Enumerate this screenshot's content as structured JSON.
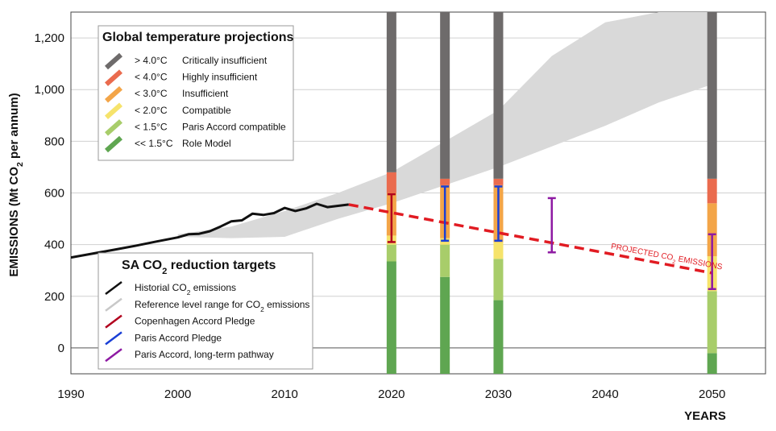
{
  "chart_data": {
    "type": "bar",
    "xlabel": "YEARS",
    "ylabel": "EMISSIONS (Mt CO2 per annum)",
    "ylabel_parts": {
      "pre": "EMISSIONS (Mt CO",
      "sub": "2",
      "post": " per annum)"
    },
    "xlim": [
      1990,
      2055
    ],
    "ylim": [
      -100,
      1300
    ],
    "x_ticks": [
      {
        "value": 1990,
        "label": "1990"
      },
      {
        "value": 2000,
        "label": "2000"
      },
      {
        "value": 2010,
        "label": "2010"
      },
      {
        "value": 2020,
        "label": "2020"
      },
      {
        "value": 2030,
        "label": "2030"
      },
      {
        "value": 2040,
        "label": "2040"
      },
      {
        "value": 2050,
        "label": "2050"
      }
    ],
    "y_ticks": [
      {
        "value": 0,
        "label": "0"
      },
      {
        "value": 200,
        "label": "200"
      },
      {
        "value": 400,
        "label": "400"
      },
      {
        "value": 600,
        "label": "600"
      },
      {
        "value": 800,
        "label": "800"
      },
      {
        "value": 1000,
        "label": "1,000"
      },
      {
        "value": 1200,
        "label": "1,200"
      }
    ],
    "grid": true,
    "historical_emissions": {
      "color": "#111111",
      "points": [
        [
          1990,
          350
        ],
        [
          1992,
          365
        ],
        [
          1994,
          380
        ],
        [
          1996,
          395
        ],
        [
          1998,
          412
        ],
        [
          2000,
          428
        ],
        [
          2001,
          440
        ],
        [
          2002,
          442
        ],
        [
          2003,
          452
        ],
        [
          2004,
          470
        ],
        [
          2005,
          490
        ],
        [
          2006,
          494
        ],
        [
          2007,
          520
        ],
        [
          2008,
          515
        ],
        [
          2009,
          522
        ],
        [
          2010,
          542
        ],
        [
          2011,
          530
        ],
        [
          2012,
          540
        ],
        [
          2013,
          558
        ],
        [
          2014,
          545
        ],
        [
          2015,
          550
        ],
        [
          2016,
          555
        ]
      ]
    },
    "reference_range": {
      "color": "#d9d9d9",
      "upper": [
        [
          2000,
          440
        ],
        [
          2005,
          470
        ],
        [
          2010,
          530
        ],
        [
          2015,
          600
        ],
        [
          2020,
          680
        ],
        [
          2025,
          800
        ],
        [
          2030,
          920
        ],
        [
          2035,
          1130
        ],
        [
          2040,
          1260
        ],
        [
          2045,
          1300
        ],
        [
          2050,
          1300
        ]
      ],
      "lower": [
        [
          2000,
          430
        ],
        [
          2005,
          425
        ],
        [
          2010,
          430
        ],
        [
          2015,
          500
        ],
        [
          2020,
          560
        ],
        [
          2025,
          630
        ],
        [
          2030,
          700
        ],
        [
          2035,
          780
        ],
        [
          2040,
          860
        ],
        [
          2045,
          950
        ],
        [
          2050,
          1020
        ]
      ]
    },
    "projected_emissions": {
      "label": "PROJECTED CO",
      "label_sub": "2",
      "label_post": " EMISSIONS",
      "color": "#e11b22",
      "points": [
        [
          2016,
          555
        ],
        [
          2050,
          290
        ]
      ]
    },
    "temperature_bars": [
      {
        "year": 2020,
        "segments": [
          {
            "tier": "<< 1.5°C",
            "from": -100,
            "to": 335
          },
          {
            "tier": "< 1.5°C",
            "from": 335,
            "to": 400
          },
          {
            "tier": "< 2.0°C",
            "from": 400,
            "to": 435
          },
          {
            "tier": "< 3.0°C",
            "from": 435,
            "to": 600
          },
          {
            "tier": "< 4.0°C",
            "from": 600,
            "to": 680
          },
          {
            "tier": "> 4.0°C",
            "from": 680,
            "to": 1300
          }
        ]
      },
      {
        "year": 2025,
        "segments": [
          {
            "tier": "<< 1.5°C",
            "from": -100,
            "to": 275
          },
          {
            "tier": "< 1.5°C",
            "from": 275,
            "to": 400
          },
          {
            "tier": "< 2.0°C",
            "from": 400,
            "to": 425
          },
          {
            "tier": "< 3.0°C",
            "from": 425,
            "to": 630
          },
          {
            "tier": "< 4.0°C",
            "from": 630,
            "to": 655
          },
          {
            "tier": "> 4.0°C",
            "from": 655,
            "to": 1300
          }
        ]
      },
      {
        "year": 2030,
        "segments": [
          {
            "tier": "<< 1.5°C",
            "from": -100,
            "to": 185
          },
          {
            "tier": "< 1.5°C",
            "from": 185,
            "to": 345
          },
          {
            "tier": "< 2.0°C",
            "from": 345,
            "to": 410
          },
          {
            "tier": "< 3.0°C",
            "from": 410,
            "to": 630
          },
          {
            "tier": "< 4.0°C",
            "from": 630,
            "to": 655
          },
          {
            "tier": "> 4.0°C",
            "from": 655,
            "to": 1300
          }
        ]
      },
      {
        "year": 2050,
        "segments": [
          {
            "tier": "<< 1.5°C",
            "from": -100,
            "to": -20
          },
          {
            "tier": "< 1.5°C",
            "from": -20,
            "to": 220
          },
          {
            "tier": "< 2.0°C",
            "from": 220,
            "to": 355
          },
          {
            "tier": "< 3.0°C",
            "from": 355,
            "to": 560
          },
          {
            "tier": "< 4.0°C",
            "from": 560,
            "to": 655
          },
          {
            "tier": "> 4.0°C",
            "from": 655,
            "to": 1300
          }
        ]
      }
    ],
    "target_ranges": [
      {
        "name": "Copenhagen Accord Pledge",
        "color": "#b2001e",
        "x": 2020,
        "low": 410,
        "high": 595
      },
      {
        "name": "Paris Accord Pledge",
        "color": "#1a3fd6",
        "x": 2025,
        "low": 415,
        "high": 625
      },
      {
        "name": "Paris Accord Pledge",
        "color": "#1a3fd6",
        "x": 2030,
        "low": 415,
        "high": 625
      },
      {
        "name": "Paris Accord, long-term pathway",
        "color": "#8e1aa3",
        "x": 2035,
        "low": 370,
        "high": 580
      },
      {
        "name": "Paris Accord, long-term pathway",
        "color": "#8e1aa3",
        "x": 2050,
        "low": 228,
        "high": 440
      }
    ],
    "legend_temperature": {
      "title": "Global temperature projections",
      "placement": "top-left",
      "items": [
        {
          "threshold": "> 4.0°C",
          "label": "Critically insufficient",
          "color": "#6e6b6b"
        },
        {
          "threshold": "< 4.0°C",
          "label": "Highly insufficient",
          "color": "#ea6b4e"
        },
        {
          "threshold": "< 3.0°C",
          "label": "Insufficient",
          "color": "#f3a548"
        },
        {
          "threshold": "< 2.0°C",
          "label": "Compatible",
          "color": "#f6e36b"
        },
        {
          "threshold": "< 1.5°C",
          "label": "Paris Accord compatible",
          "color": "#a8cd6a"
        },
        {
          "threshold": "<< 1.5°C",
          "label": "Role Model",
          "color": "#5fa651"
        }
      ]
    },
    "legend_targets": {
      "title": "SA CO",
      "title_sub": "2",
      "title_post": " reduction targets",
      "placement": "bottom-left",
      "items": [
        {
          "label": "Historial CO",
          "sub": "2",
          "post": " emissions",
          "color": "#111111"
        },
        {
          "label": "Reference level range for CO",
          "sub": "2",
          "post": " emissions",
          "color": "#c8c8c8"
        },
        {
          "label": "Copenhagen Accord Pledge",
          "sub": "",
          "post": "",
          "color": "#b2001e"
        },
        {
          "label": "Paris Accord Pledge",
          "sub": "",
          "post": "",
          "color": "#1a3fd6"
        },
        {
          "label": "Paris Accord, long-term pathway",
          "sub": "",
          "post": "",
          "color": "#8e1aa3"
        }
      ]
    }
  }
}
